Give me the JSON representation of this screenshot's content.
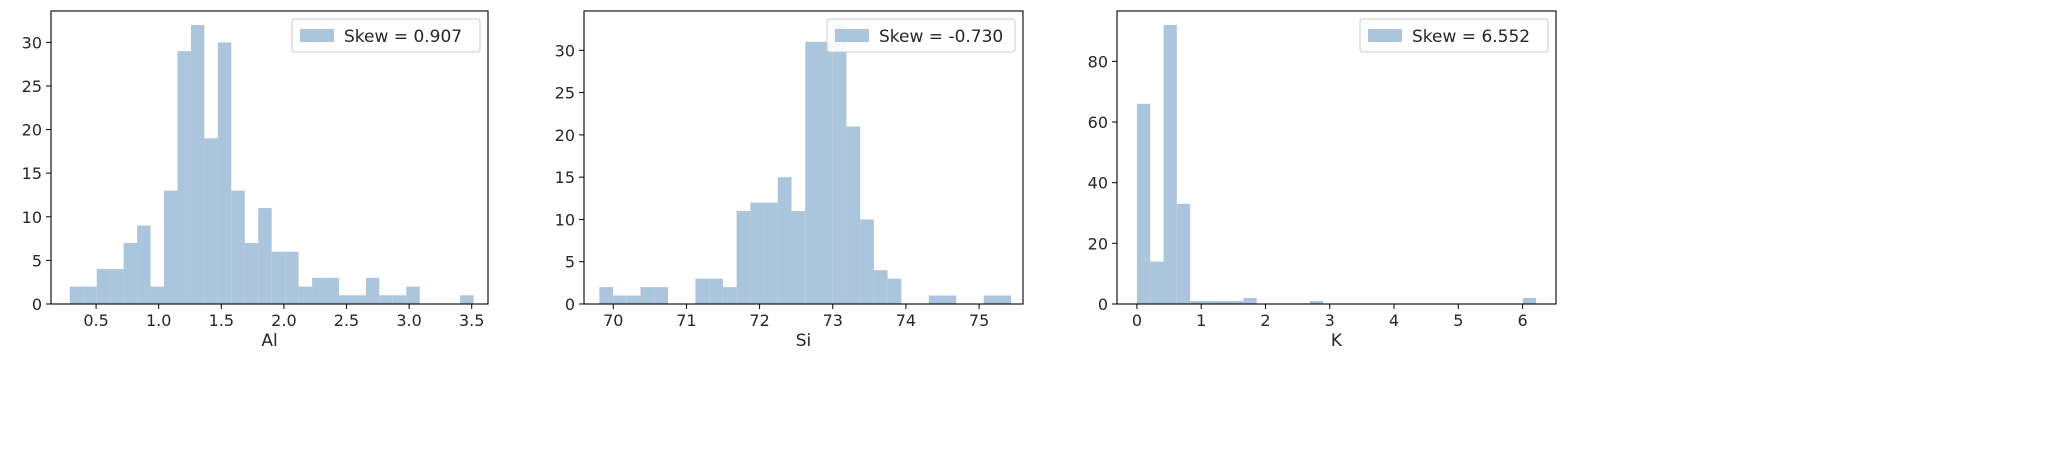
{
  "chart_data": [
    {
      "type": "bar",
      "xlabel": "Al",
      "ylabel": "",
      "xlim": [
        0.14,
        3.63
      ],
      "ylim": [
        0,
        33.6
      ],
      "xticks": [
        0.5,
        1.0,
        1.5,
        2.0,
        2.5,
        3.0,
        3.5
      ],
      "xtick_labels": [
        "0.5",
        "1.0",
        "1.5",
        "2.0",
        "2.5",
        "3.0",
        "3.5"
      ],
      "yticks": [
        0,
        5,
        10,
        15,
        20,
        25,
        30
      ],
      "ytick_labels": [
        "0",
        "5",
        "10",
        "15",
        "20",
        "25",
        "30"
      ],
      "bin_start": 0.29,
      "bin_width": 0.1075,
      "values": [
        2,
        2,
        4,
        4,
        7,
        9,
        2,
        13,
        29,
        32,
        19,
        30,
        13,
        7,
        11,
        6,
        6,
        2,
        3,
        3,
        1,
        1,
        3,
        1,
        1,
        2,
        0,
        0,
        0,
        1
      ],
      "legend": {
        "label": "Skew = 0.907",
        "position": "upper right"
      },
      "color": "#abc5dc",
      "grid": false
    },
    {
      "type": "bar",
      "xlabel": "Si",
      "ylabel": "",
      "xlim": [
        69.6,
        75.6
      ],
      "ylim": [
        0,
        34.65
      ],
      "xticks": [
        70,
        71,
        72,
        73,
        74,
        75
      ],
      "xtick_labels": [
        "70",
        "71",
        "72",
        "73",
        "74",
        "75"
      ],
      "yticks": [
        0,
        5,
        10,
        15,
        20,
        25,
        30
      ],
      "ytick_labels": [
        "0",
        "5",
        "10",
        "15",
        "20",
        "25",
        "30"
      ],
      "bin_start": 69.81,
      "bin_width": 0.1876,
      "values": [
        2,
        1,
        1,
        2,
        2,
        0,
        0,
        3,
        3,
        2,
        11,
        12,
        12,
        15,
        11,
        31,
        31,
        33,
        21,
        10,
        4,
        3,
        0,
        0,
        1,
        1,
        0,
        0,
        1,
        1
      ],
      "legend": {
        "label": "Skew = -0.730",
        "position": "upper right"
      },
      "color": "#abc5dc",
      "grid": false
    },
    {
      "type": "bar",
      "xlabel": "K",
      "ylabel": "",
      "xlim": [
        -0.31,
        6.52
      ],
      "ylim": [
        0,
        96.6
      ],
      "xticks": [
        0,
        1,
        2,
        3,
        4,
        5,
        6
      ],
      "xtick_labels": [
        "0",
        "1",
        "2",
        "3",
        "4",
        "5",
        "6"
      ],
      "yticks": [
        0,
        20,
        40,
        60,
        80
      ],
      "ytick_labels": [
        "0",
        "20",
        "40",
        "60",
        "80"
      ],
      "bin_start": 0.0,
      "bin_width": 0.207,
      "values": [
        66,
        14,
        92,
        33,
        1,
        1,
        1,
        1,
        2,
        0,
        0,
        0,
        0,
        1,
        0,
        0,
        0,
        0,
        0,
        0,
        0,
        0,
        0,
        0,
        0,
        0,
        0,
        0,
        0,
        2
      ],
      "legend": {
        "label": "Skew = 6.552",
        "position": "upper right"
      },
      "color": "#abc5dc",
      "grid": false
    }
  ]
}
